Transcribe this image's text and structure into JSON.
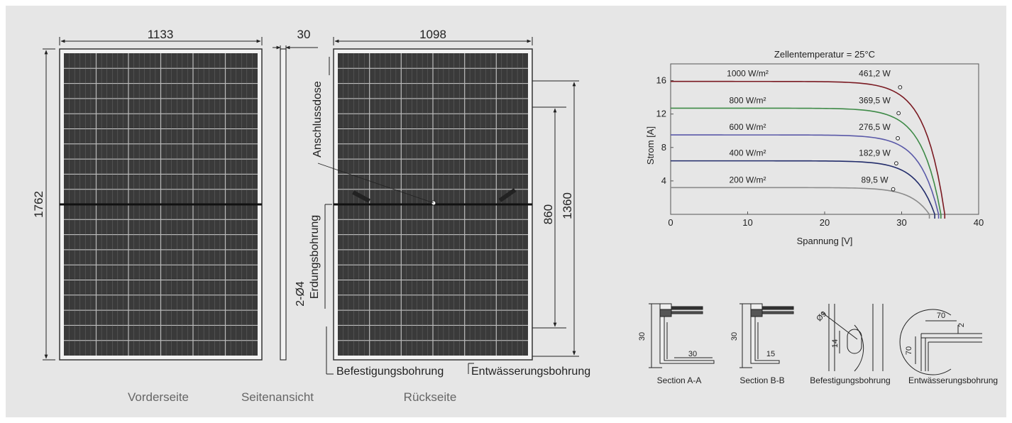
{
  "drawings": {
    "front": {
      "caption": "Vorderseite",
      "width_label": "1133",
      "height_label": "1762"
    },
    "side": {
      "caption": "Seitenansicht",
      "thickness_label": "30"
    },
    "back": {
      "caption": "Rückseite",
      "width_label": "1098",
      "dim_inner": "860",
      "dim_outer": "1360",
      "label_junction_box": "Anschlussdose",
      "label_ground_hole_1": "2-Ø4",
      "label_ground_hole_2": "Erdungsbohrung",
      "label_mounting_hole": "Befestigungsbohrung",
      "label_drain_hole": "Entwässerungsbohrung"
    }
  },
  "details": [
    {
      "caption": "Section A-A",
      "dim_1": "30",
      "dim_2": "30"
    },
    {
      "caption": "Section B-B",
      "dim_1": "30",
      "dim_2": "15"
    },
    {
      "caption": "Befestigungsbohrung",
      "dim_1": "14",
      "dim_2": "Ø9"
    },
    {
      "caption": "Entwässerungsbohrung",
      "dim_1": "70",
      "dim_2": "70",
      "dim_3": "2"
    }
  ],
  "chart_data": {
    "type": "line",
    "title": "Zellentemperatur = 25°C",
    "xlabel": "Spannung [V]",
    "ylabel": "Strom [A]",
    "xlim": [
      0,
      40
    ],
    "ylim": [
      0,
      18
    ],
    "xticks": [
      0,
      10,
      20,
      30,
      40
    ],
    "yticks": [
      4,
      8,
      12,
      16
    ],
    "grid": false,
    "series": [
      {
        "name": "1000 W/m²",
        "power_label": "461,2 W",
        "color": "#7a1a22",
        "isc": 15.9,
        "voc": 35.6,
        "mpp": [
          29.8,
          15.2
        ]
      },
      {
        "name": "800 W/m²",
        "power_label": "369,5 W",
        "color": "#3e8a47",
        "isc": 12.7,
        "voc": 35.1,
        "mpp": [
          29.6,
          12.1
        ]
      },
      {
        "name": "600 W/m²",
        "power_label": "276,5 W",
        "color": "#5a59a8",
        "isc": 9.5,
        "voc": 34.8,
        "mpp": [
          29.5,
          9.1
        ]
      },
      {
        "name": "400 W/m²",
        "power_label": "182,9 W",
        "color": "#232d6b",
        "isc": 6.4,
        "voc": 34.3,
        "mpp": [
          29.3,
          6.1
        ]
      },
      {
        "name": "200 W/m²",
        "power_label": "89,5 W",
        "color": "#8c8c8c",
        "isc": 3.2,
        "voc": 33.6,
        "mpp": [
          28.9,
          3.0
        ]
      }
    ]
  }
}
